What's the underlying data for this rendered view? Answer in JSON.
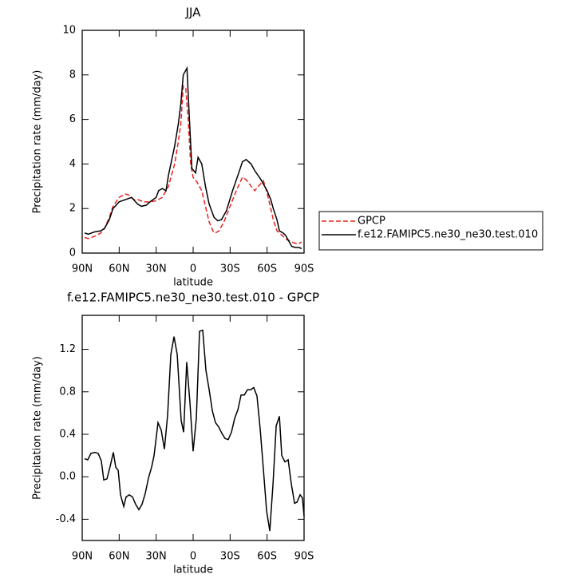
{
  "chart_data": [
    {
      "type": "line",
      "title": "JJA",
      "xlabel": "latitude",
      "ylabel": "Precipitation rate (mm/day)",
      "xlim": [
        90,
        -90
      ],
      "ylim": [
        0,
        10
      ],
      "xticks": [
        {
          "value": 90,
          "label": "90N"
        },
        {
          "value": 60,
          "label": "60N"
        },
        {
          "value": 30,
          "label": "30N"
        },
        0,
        {
          "value": -30,
          "label": "30S"
        },
        {
          "value": -60,
          "label": "60S"
        },
        {
          "value": -90,
          "label": "90S"
        }
      ],
      "yticks": [
        0,
        2,
        4,
        6,
        8,
        10
      ],
      "legend": "right",
      "series": [
        {
          "name": "GPCP",
          "color": "#e8231f",
          "dashed": true,
          "x": [
            88,
            85,
            80,
            75,
            72,
            68,
            65,
            60,
            55,
            52,
            48,
            45,
            40,
            35,
            30,
            25,
            20,
            15,
            12,
            10,
            8,
            6,
            4,
            2,
            0,
            -3,
            -7,
            -10,
            -13,
            -16,
            -18,
            -21,
            -25,
            -30,
            -35,
            -40,
            -43,
            -47,
            -50,
            -53,
            -57,
            -60,
            -63,
            -65,
            -68,
            -72,
            -76,
            -80,
            -85,
            -88
          ],
          "values": [
            0.7,
            0.65,
            0.75,
            0.9,
            1.1,
            1.6,
            2.1,
            2.5,
            2.65,
            2.6,
            2.4,
            2.4,
            2.3,
            2.3,
            2.35,
            2.5,
            3.0,
            4.0,
            5.0,
            5.8,
            7.5,
            7.4,
            6.0,
            4.0,
            3.4,
            3.2,
            2.8,
            2.1,
            1.4,
            1.0,
            0.9,
            1.0,
            1.4,
            2.1,
            2.8,
            3.4,
            3.3,
            3.0,
            2.8,
            3.0,
            3.25,
            2.7,
            2.0,
            1.5,
            1.0,
            0.8,
            0.6,
            0.5,
            0.4,
            0.5
          ]
        },
        {
          "name": "f.e12.FAMIPC5.ne30_ne30.test.010",
          "color": "#000000",
          "dashed": false,
          "x": [
            88,
            85,
            80,
            75,
            72,
            68,
            65,
            60,
            55,
            50,
            45,
            42,
            38,
            35,
            30,
            28,
            25,
            22,
            20,
            15,
            12,
            10,
            8,
            5,
            3,
            1,
            -2,
            -4,
            -7,
            -10,
            -13,
            -17,
            -20,
            -23,
            -27,
            -32,
            -37,
            -40,
            -43,
            -47,
            -50,
            -55,
            -60,
            -63,
            -65,
            -68,
            -70,
            -73,
            -75,
            -78,
            -80,
            -83,
            -86,
            -88
          ],
          "values": [
            0.9,
            0.85,
            0.95,
            1.0,
            1.1,
            1.5,
            2.0,
            2.3,
            2.4,
            2.5,
            2.2,
            2.1,
            2.15,
            2.3,
            2.5,
            2.8,
            2.9,
            2.8,
            3.5,
            4.8,
            5.8,
            6.7,
            8.0,
            8.3,
            6.0,
            3.8,
            3.6,
            4.3,
            4.0,
            3.0,
            2.2,
            1.6,
            1.45,
            1.5,
            1.9,
            2.8,
            3.6,
            4.1,
            4.2,
            4.0,
            3.7,
            3.3,
            2.8,
            2.4,
            2.0,
            1.5,
            1.0,
            0.9,
            0.8,
            0.5,
            0.3,
            0.25,
            0.25,
            0.2
          ]
        }
      ]
    },
    {
      "type": "line",
      "title": "f.e12.FAMIPC5.ne30_ne30.test.010 - GPCP",
      "xlabel": "latitude",
      "ylabel": "Precipitation rate (mm/day)",
      "xlim": [
        90,
        -90
      ],
      "ylim": [
        -0.6,
        1.52
      ],
      "xticks": [
        {
          "value": 90,
          "label": "90N"
        },
        {
          "value": 60,
          "label": "60N"
        },
        {
          "value": 30,
          "label": "30N"
        },
        0,
        {
          "value": -30,
          "label": "30S"
        },
        {
          "value": -60,
          "label": "60S"
        },
        {
          "value": -90,
          "label": "90S"
        }
      ],
      "yticks": [
        -0.4,
        {
          "value": 0,
          "label": "0.0"
        },
        0.4,
        0.8,
        1.2
      ],
      "series": [
        {
          "color": "#000000",
          "dashed": false,
          "x": [
            88.1,
            85.5,
            82.9,
            79.6,
            77.0,
            74.5,
            72.5,
            69.9,
            67.3,
            64.7,
            62.8,
            60.8,
            58.9,
            56.3,
            54.4,
            51.8,
            49.2,
            46.6,
            44.0,
            41.5,
            38.9,
            36.2,
            33.7,
            31.7,
            28.5,
            25.9,
            23.3,
            20.7,
            18.1,
            15.5,
            12.9,
            9.7,
            7.7,
            5.2,
            2.6,
            0,
            -2.6,
            -5.2,
            -7.8,
            -10.4,
            -13.0,
            -15.6,
            -18.1,
            -20.7,
            -23.3,
            -25.9,
            -28.5,
            -31.1,
            -33.7,
            -36.3,
            -38.9,
            -41.5,
            -44.1,
            -46.7,
            -49.2,
            -51.8,
            -54.4,
            -57.0,
            -59.6,
            -62.2,
            -64.8,
            -67.4,
            -70.0,
            -71.9,
            -74.5,
            -77.1,
            -79.7,
            -82.3,
            -84.2,
            -86.8,
            -88.7,
            -90
          ],
          "values": [
            0.17,
            0.16,
            0.22,
            0.23,
            0.22,
            0.15,
            -0.03,
            -0.02,
            0.1,
            0.23,
            0.09,
            0.06,
            -0.17,
            -0.28,
            -0.19,
            -0.17,
            -0.19,
            -0.26,
            -0.31,
            -0.26,
            -0.16,
            -0.01,
            0.09,
            0.2,
            0.51,
            0.44,
            0.26,
            0.58,
            1.15,
            1.32,
            1.15,
            0.53,
            0.42,
            1.08,
            0.7,
            0.24,
            0.55,
            1.37,
            1.38,
            1.0,
            0.82,
            0.62,
            0.51,
            0.47,
            0.41,
            0.36,
            0.35,
            0.42,
            0.55,
            0.63,
            0.77,
            0.77,
            0.82,
            0.82,
            0.84,
            0.76,
            0.45,
            0.07,
            -0.32,
            -0.51,
            -0.07,
            0.48,
            0.57,
            0.2,
            0.14,
            0.16,
            -0.07,
            -0.25,
            -0.24,
            -0.17,
            -0.2,
            -0.37
          ]
        }
      ]
    }
  ]
}
